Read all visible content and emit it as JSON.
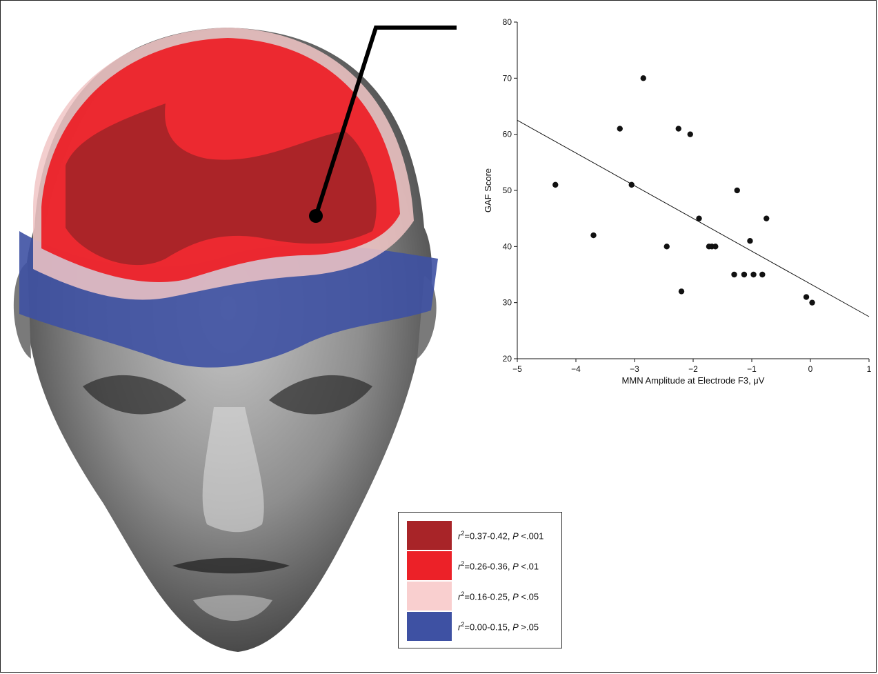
{
  "legend": {
    "items": [
      {
        "color": "#a82428",
        "r2": "0.37-0.42",
        "p": "<.001"
      },
      {
        "color": "#ec2128",
        "r2": "0.26-0.36",
        "p": "<.01"
      },
      {
        "color": "#f9cfcf",
        "r2": "0.16-0.25",
        "p": "<.05"
      },
      {
        "color": "#3e51a3",
        "r2": "0.00-0.15",
        "p": ">.05"
      }
    ]
  },
  "chart_data": {
    "type": "scatter",
    "xlabel": "MMN Amplitude at Electrode F3, μV",
    "ylabel": "GAF Score",
    "xlim": [
      -5,
      1
    ],
    "ylim": [
      20,
      80
    ],
    "xticks": [
      -5,
      -4,
      -3,
      -2,
      -1,
      0,
      1
    ],
    "yticks": [
      20,
      30,
      40,
      50,
      60,
      70,
      80
    ],
    "points": [
      {
        "x": -4.35,
        "y": 51
      },
      {
        "x": -3.7,
        "y": 42
      },
      {
        "x": -3.25,
        "y": 61
      },
      {
        "x": -3.05,
        "y": 51
      },
      {
        "x": -2.85,
        "y": 70
      },
      {
        "x": -2.45,
        "y": 40
      },
      {
        "x": -2.25,
        "y": 61
      },
      {
        "x": -2.2,
        "y": 32
      },
      {
        "x": -2.05,
        "y": 60
      },
      {
        "x": -1.9,
        "y": 45
      },
      {
        "x": -1.73,
        "y": 40
      },
      {
        "x": -1.68,
        "y": 40
      },
      {
        "x": -1.62,
        "y": 40
      },
      {
        "x": -1.3,
        "y": 35
      },
      {
        "x": -1.25,
        "y": 50
      },
      {
        "x": -1.13,
        "y": 35
      },
      {
        "x": -1.03,
        "y": 41
      },
      {
        "x": -0.97,
        "y": 35
      },
      {
        "x": -0.82,
        "y": 35
      },
      {
        "x": -0.75,
        "y": 45
      },
      {
        "x": -0.07,
        "y": 31
      },
      {
        "x": 0.03,
        "y": 30
      }
    ],
    "fit_line": {
      "x": [
        -5,
        1
      ],
      "y": [
        62.5,
        27.5
      ]
    },
    "grid": false
  }
}
